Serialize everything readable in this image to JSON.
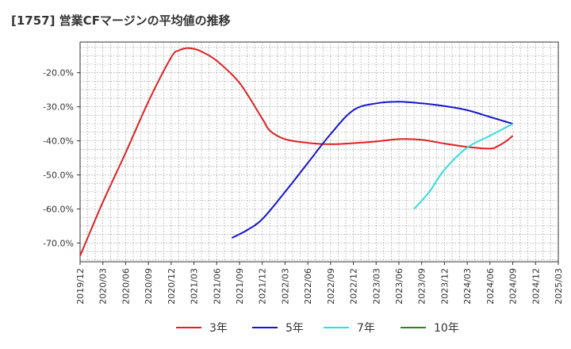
{
  "chart_data": {
    "type": "line",
    "title": "[1757]  営業CFマージンの平均値の推移",
    "xlabel": "",
    "ylabel": "",
    "ylim": [
      -75.5,
      -11
    ],
    "y_ticks": [
      -20,
      -30,
      -40,
      -50,
      -60,
      -70
    ],
    "y_tick_labels": [
      "-20.0%",
      "-30.0%",
      "-40.0%",
      "-50.0%",
      "-60.0%",
      "-70.0%"
    ],
    "x_ticks": [
      "2019/12",
      "2020/03",
      "2020/06",
      "2020/09",
      "2020/12",
      "2021/03",
      "2021/06",
      "2021/09",
      "2021/12",
      "2022/03",
      "2022/06",
      "2022/09",
      "2022/12",
      "2023/03",
      "2023/06",
      "2023/09",
      "2023/12",
      "2024/03",
      "2024/06",
      "2024/09",
      "2024/12",
      "2025/03"
    ],
    "grid": true,
    "legend_position": "bottom",
    "series": [
      {
        "name": "3年",
        "color": "#dd2222",
        "points": [
          [
            "2019/12",
            -73.8
          ],
          [
            "2020/03",
            -58.0
          ],
          [
            "2020/06",
            -43.5
          ],
          [
            "2020/09",
            -28.5
          ],
          [
            "2020/12",
            -15.5
          ],
          [
            "2021/01",
            -13.5
          ],
          [
            "2021/02",
            -12.8
          ],
          [
            "2021/03",
            -13.0
          ],
          [
            "2021/04",
            -13.8
          ],
          [
            "2021/06",
            -16.5
          ],
          [
            "2021/09",
            -23.0
          ],
          [
            "2021/12",
            -33.5
          ],
          [
            "2022/01",
            -37.0
          ],
          [
            "2022/03",
            -39.5
          ],
          [
            "2022/06",
            -40.6
          ],
          [
            "2022/09",
            -41.0
          ],
          [
            "2022/12",
            -40.7
          ],
          [
            "2023/03",
            -40.2
          ],
          [
            "2023/06",
            -39.5
          ],
          [
            "2023/09",
            -39.7
          ],
          [
            "2023/12",
            -40.8
          ],
          [
            "2024/03",
            -41.8
          ],
          [
            "2024/06",
            -42.3
          ],
          [
            "2024/07",
            -41.6
          ],
          [
            "2024/08",
            -40.3
          ],
          [
            "2024/09",
            -38.5
          ]
        ]
      },
      {
        "name": "5年",
        "color": "#1515cc",
        "points": [
          [
            "2021/08",
            -68.5
          ],
          [
            "2021/10",
            -66.2
          ],
          [
            "2021/12",
            -63.0
          ],
          [
            "2022/03",
            -55.0
          ],
          [
            "2022/06",
            -46.5
          ],
          [
            "2022/09",
            -38.0
          ],
          [
            "2022/12",
            -31.0
          ],
          [
            "2023/03",
            -29.0
          ],
          [
            "2023/06",
            -28.5
          ],
          [
            "2023/09",
            -29.0
          ],
          [
            "2023/12",
            -29.8
          ],
          [
            "2024/03",
            -31.0
          ],
          [
            "2024/06",
            -33.0
          ],
          [
            "2024/09",
            -35.0
          ]
        ]
      },
      {
        "name": "7年",
        "color": "#33dddd",
        "points": [
          [
            "2023/08",
            -60.0
          ],
          [
            "2023/10",
            -55.0
          ],
          [
            "2023/12",
            -48.5
          ],
          [
            "2024/03",
            -42.0
          ],
          [
            "2024/06",
            -38.5
          ],
          [
            "2024/09",
            -35.0
          ]
        ]
      },
      {
        "name": "10年",
        "color": "#228822",
        "points": []
      }
    ]
  }
}
